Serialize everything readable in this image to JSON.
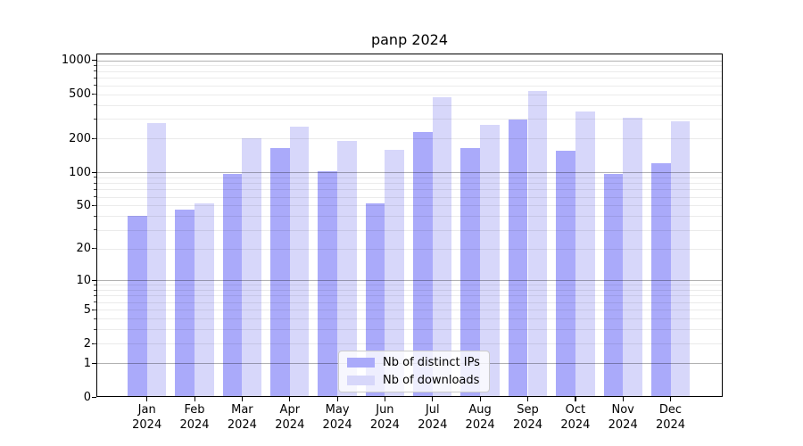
{
  "title": "panp 2024",
  "chart_data": {
    "type": "bar",
    "title": "panp 2024",
    "categories": [
      "Jan 2024",
      "Feb 2024",
      "Mar 2024",
      "Apr 2024",
      "May 2024",
      "Jun 2024",
      "Jul 2024",
      "Aug 2024",
      "Sep 2024",
      "Oct 2024",
      "Nov 2024",
      "Dec 2024"
    ],
    "x_tick_labels": [
      {
        "line1": "Jan",
        "line2": "2024"
      },
      {
        "line1": "Feb",
        "line2": "2024"
      },
      {
        "line1": "Mar",
        "line2": "2024"
      },
      {
        "line1": "Apr",
        "line2": "2024"
      },
      {
        "line1": "May",
        "line2": "2024"
      },
      {
        "line1": "Jun",
        "line2": "2024"
      },
      {
        "line1": "Jul",
        "line2": "2024"
      },
      {
        "line1": "Aug",
        "line2": "2024"
      },
      {
        "line1": "Sep",
        "line2": "2024"
      },
      {
        "line1": "Oct",
        "line2": "2024"
      },
      {
        "line1": "Nov",
        "line2": "2024"
      },
      {
        "line1": "Dec",
        "line2": "2024"
      }
    ],
    "series": [
      {
        "name": "Nb of distinct IPs",
        "key": "distinct-ips",
        "color": "#aaaafa",
        "values": [
          40,
          46,
          97,
          165,
          101,
          52,
          228,
          165,
          298,
          156,
          96,
          121
        ]
      },
      {
        "name": "Nb of downloads",
        "key": "downloads",
        "color": "#d7d7fa",
        "values": [
          275,
          52,
          200,
          256,
          190,
          158,
          468,
          267,
          536,
          349,
          307,
          285
        ]
      }
    ],
    "xlabel": "",
    "ylabel": "",
    "y_scale": "log1p",
    "ylim": [
      0,
      1000
    ],
    "y_ticks": [
      {
        "value": 0,
        "label": "0"
      },
      {
        "value": 1,
        "label": "1"
      },
      {
        "value": 2,
        "label": "2"
      },
      {
        "value": 5,
        "label": "5"
      },
      {
        "value": 10,
        "label": "10"
      },
      {
        "value": 20,
        "label": "20"
      },
      {
        "value": 50,
        "label": "50"
      },
      {
        "value": 100,
        "label": "100"
      },
      {
        "value": 200,
        "label": "200"
      },
      {
        "value": 500,
        "label": "500"
      },
      {
        "value": 1000,
        "label": "1000"
      }
    ],
    "grid": true,
    "legend_position": "lower-center-inside",
    "colors": {
      "major_gridline": "#b3b3b3",
      "minor_gridline": "#ebebeb",
      "axis": "#000000",
      "background": "#ffffff"
    }
  }
}
